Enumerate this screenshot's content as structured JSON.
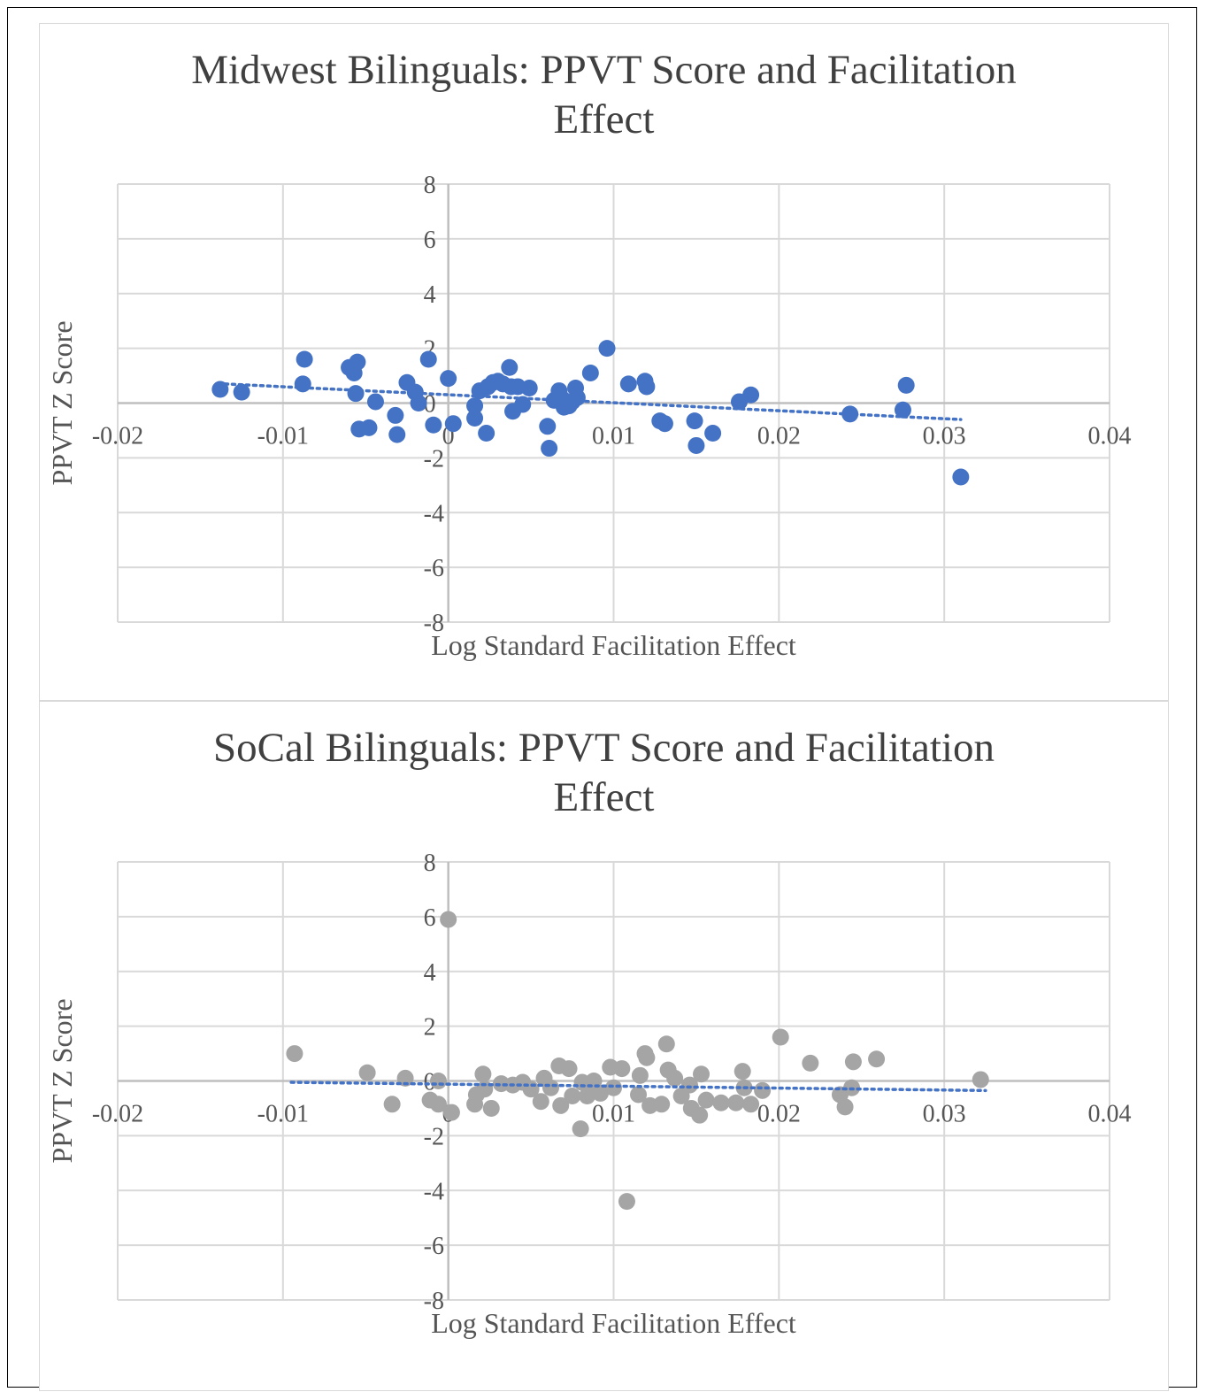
{
  "charts": [
    {
      "id": "midwest",
      "title_line1": "Midwest Bilinguals: PPVT Score and Facilitation",
      "title_line2": "Effect"
    },
    {
      "id": "socal",
      "title_line1": "SoCal Bilinguals: PPVT Score and Facilitation",
      "title_line2": "Effect"
    }
  ],
  "chart_data": [
    {
      "type": "scatter",
      "title": "Midwest Bilinguals: PPVT Score and Facilitation Effect",
      "xlabel": "Log Standard Facilitation Effect",
      "ylabel": "PPVT Z Score",
      "xlim": [
        -0.02,
        0.04
      ],
      "ylim": [
        -8,
        8
      ],
      "xticks": [
        "-0.02",
        "-0.01",
        "0",
        "0.01",
        "0.02",
        "0.03",
        "0.04"
      ],
      "yticks": [
        "-8",
        "-6",
        "-4",
        "-2",
        "0",
        "2",
        "4",
        "6",
        "8"
      ],
      "grid": true,
      "marker_color": "#4472c4",
      "trendline": {
        "style": "dotted",
        "color": "#4472c4",
        "x": [
          -0.0135,
          0.031
        ],
        "y": [
          0.7,
          -0.6
        ]
      },
      "points": [
        [
          -0.0138,
          0.5
        ],
        [
          -0.0125,
          0.4
        ],
        [
          -0.0088,
          0.7
        ],
        [
          -0.0087,
          1.6
        ],
        [
          -0.006,
          1.3
        ],
        [
          -0.0057,
          1.1
        ],
        [
          -0.0055,
          1.5
        ],
        [
          -0.0056,
          0.35
        ],
        [
          -0.0054,
          -0.95
        ],
        [
          -0.0048,
          -0.9
        ],
        [
          -0.0044,
          0.05
        ],
        [
          -0.0032,
          -0.45
        ],
        [
          -0.0031,
          -1.15
        ],
        [
          -0.0025,
          0.75
        ],
        [
          -0.002,
          0.4
        ],
        [
          -0.0018,
          0.0
        ],
        [
          -0.0012,
          1.6
        ],
        [
          -0.0009,
          -0.8
        ],
        [
          0.0,
          0.9
        ],
        [
          0.0003,
          -0.75
        ],
        [
          0.0016,
          -0.1
        ],
        [
          0.0016,
          -0.55
        ],
        [
          0.0019,
          0.45
        ],
        [
          0.0023,
          -1.1
        ],
        [
          0.0024,
          0.6
        ],
        [
          0.0027,
          0.75
        ],
        [
          0.003,
          0.8
        ],
        [
          0.0033,
          0.7
        ],
        [
          0.0037,
          1.3
        ],
        [
          0.0038,
          0.6
        ],
        [
          0.0039,
          -0.3
        ],
        [
          0.0042,
          0.6
        ],
        [
          0.0045,
          -0.05
        ],
        [
          0.0049,
          0.55
        ],
        [
          0.006,
          -0.85
        ],
        [
          0.0061,
          -1.65
        ],
        [
          0.0064,
          0.1
        ],
        [
          0.0067,
          0.45
        ],
        [
          0.0069,
          0.15
        ],
        [
          0.007,
          -0.15
        ],
        [
          0.0073,
          -0.1
        ],
        [
          0.0075,
          0.05
        ],
        [
          0.0077,
          0.55
        ],
        [
          0.0078,
          0.2
        ],
        [
          0.0086,
          1.1
        ],
        [
          0.0096,
          2.0
        ],
        [
          0.0109,
          0.7
        ],
        [
          0.0119,
          0.8
        ],
        [
          0.012,
          0.6
        ],
        [
          0.0128,
          -0.65
        ],
        [
          0.0131,
          -0.75
        ],
        [
          0.0149,
          -0.65
        ],
        [
          0.015,
          -1.55
        ],
        [
          0.016,
          -1.1
        ],
        [
          0.0176,
          0.05
        ],
        [
          0.0183,
          0.3
        ],
        [
          0.0243,
          -0.4
        ],
        [
          0.0275,
          -0.25
        ],
        [
          0.0277,
          0.65
        ],
        [
          0.031,
          -2.7
        ]
      ]
    },
    {
      "type": "scatter",
      "title": "SoCal Bilinguals: PPVT Score and Facilitation Effect",
      "xlabel": "Log Standard Facilitation Effect",
      "ylabel": "PPVT Z Score",
      "xlim": [
        -0.02,
        0.04
      ],
      "ylim": [
        -8,
        8
      ],
      "xticks": [
        "-0.02",
        "-0.01",
        "0",
        "0.01",
        "0.02",
        "0.03",
        "0.04"
      ],
      "yticks": [
        "-8",
        "-6",
        "-4",
        "-2",
        "0",
        "2",
        "4",
        "6",
        "8"
      ],
      "grid": true,
      "marker_color": "#a5a5a5",
      "trendline": {
        "style": "dotted",
        "color": "#4472c4",
        "x": [
          -0.0095,
          0.0325
        ],
        "y": [
          -0.05,
          -0.35
        ]
      },
      "points": [
        [
          -0.0093,
          1.0
        ],
        [
          -0.0049,
          0.3
        ],
        [
          -0.0034,
          -0.85
        ],
        [
          -0.0026,
          0.1
        ],
        [
          -0.0011,
          -0.7
        ],
        [
          -0.0006,
          0.0
        ],
        [
          -0.0006,
          -0.85
        ],
        [
          0.0002,
          -1.15
        ],
        [
          0.0,
          5.9
        ],
        [
          0.0016,
          -0.85
        ],
        [
          0.0017,
          -0.5
        ],
        [
          0.0021,
          0.25
        ],
        [
          0.0022,
          -0.3
        ],
        [
          0.0026,
          -1.0
        ],
        [
          0.0032,
          -0.1
        ],
        [
          0.0039,
          -0.15
        ],
        [
          0.0045,
          -0.05
        ],
        [
          0.005,
          -0.3
        ],
        [
          0.0056,
          -0.75
        ],
        [
          0.0058,
          0.1
        ],
        [
          0.0062,
          -0.25
        ],
        [
          0.0067,
          0.55
        ],
        [
          0.0068,
          -0.9
        ],
        [
          0.0073,
          0.45
        ],
        [
          0.0075,
          -0.55
        ],
        [
          0.008,
          -1.75
        ],
        [
          0.0081,
          -0.05
        ],
        [
          0.0084,
          -0.55
        ],
        [
          0.0086,
          -0.25
        ],
        [
          0.0088,
          0.0
        ],
        [
          0.0092,
          -0.45
        ],
        [
          0.0098,
          0.5
        ],
        [
          0.01,
          -0.25
        ],
        [
          0.0105,
          0.45
        ],
        [
          0.0108,
          -4.4
        ],
        [
          0.0115,
          -0.5
        ],
        [
          0.0116,
          0.2
        ],
        [
          0.0119,
          1.0
        ],
        [
          0.012,
          0.85
        ],
        [
          0.0122,
          -0.9
        ],
        [
          0.0129,
          -0.85
        ],
        [
          0.0132,
          1.35
        ],
        [
          0.0133,
          0.4
        ],
        [
          0.0137,
          0.1
        ],
        [
          0.0141,
          -0.55
        ],
        [
          0.0146,
          -0.15
        ],
        [
          0.0147,
          -1.0
        ],
        [
          0.0152,
          -1.25
        ],
        [
          0.0153,
          0.25
        ],
        [
          0.0156,
          -0.7
        ],
        [
          0.0165,
          -0.8
        ],
        [
          0.0174,
          -0.8
        ],
        [
          0.0178,
          0.35
        ],
        [
          0.0179,
          -0.25
        ],
        [
          0.0183,
          -0.85
        ],
        [
          0.019,
          -0.35
        ],
        [
          0.0201,
          1.6
        ],
        [
          0.0219,
          0.65
        ],
        [
          0.0237,
          -0.5
        ],
        [
          0.024,
          -0.95
        ],
        [
          0.0245,
          0.7
        ],
        [
          0.0244,
          -0.25
        ],
        [
          0.0259,
          0.8
        ],
        [
          0.0322,
          0.05
        ]
      ]
    }
  ]
}
